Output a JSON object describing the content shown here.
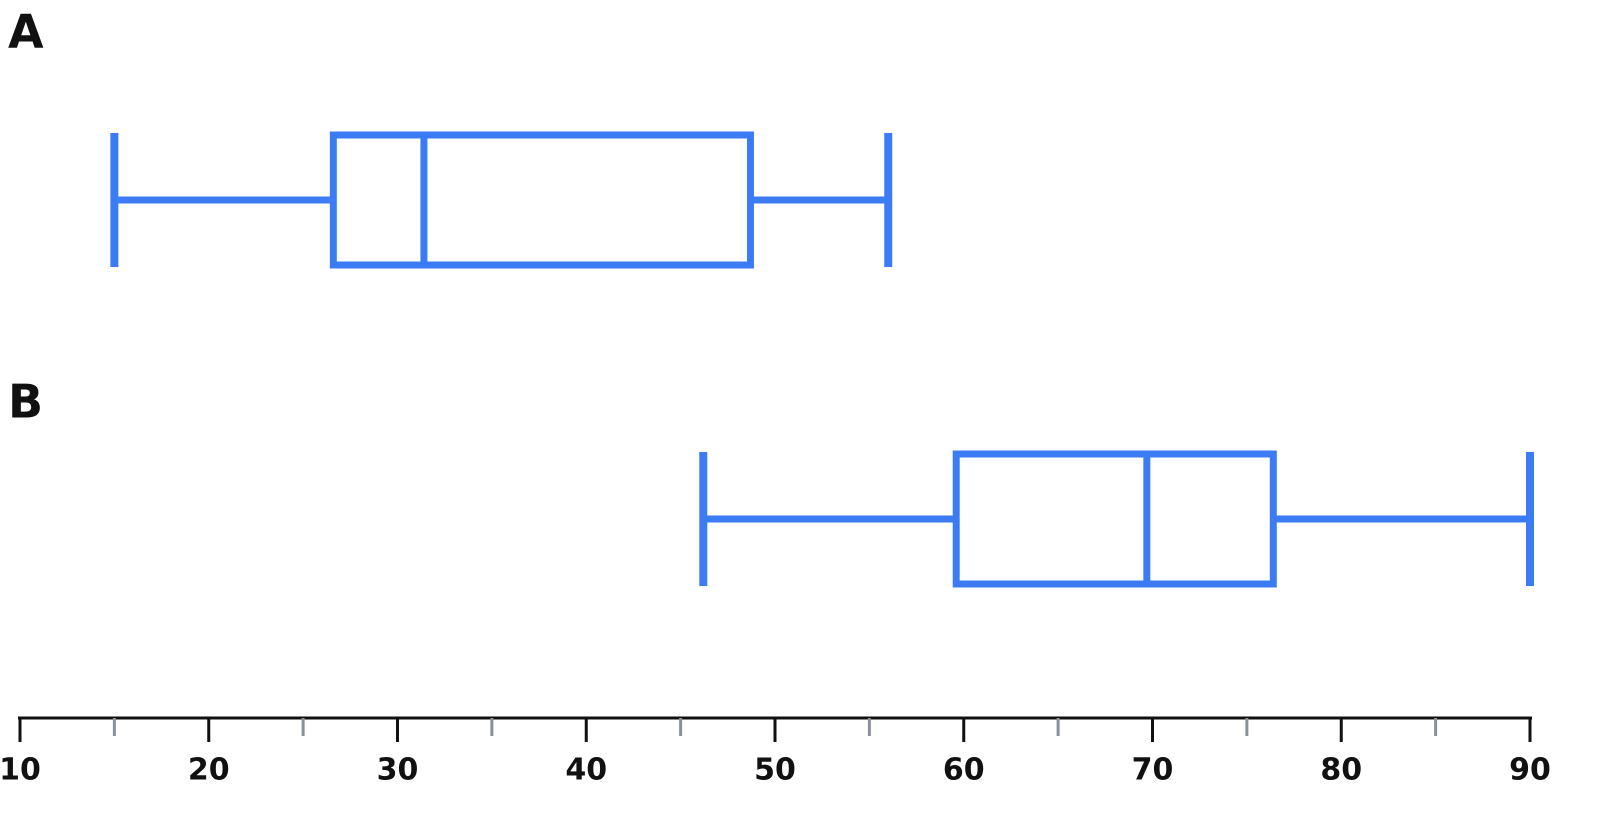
{
  "chart_data": {
    "type": "box",
    "categories": [
      "A",
      "B"
    ],
    "color": "#3b7cf5",
    "boxes": [
      {
        "min": 15,
        "q1": 26.6,
        "median": 31.4,
        "q3": 48.7,
        "max": 56
      },
      {
        "min": 46.2,
        "q1": 59.6,
        "median": 69.7,
        "q3": 76.4,
        "max": 90
      }
    ],
    "xlim": [
      10,
      90
    ],
    "xticks": [
      10,
      20,
      30,
      40,
      50,
      60,
      70,
      80,
      90
    ],
    "xminor_ticks": [
      15,
      25,
      35,
      45,
      55,
      65,
      75,
      85
    ]
  }
}
